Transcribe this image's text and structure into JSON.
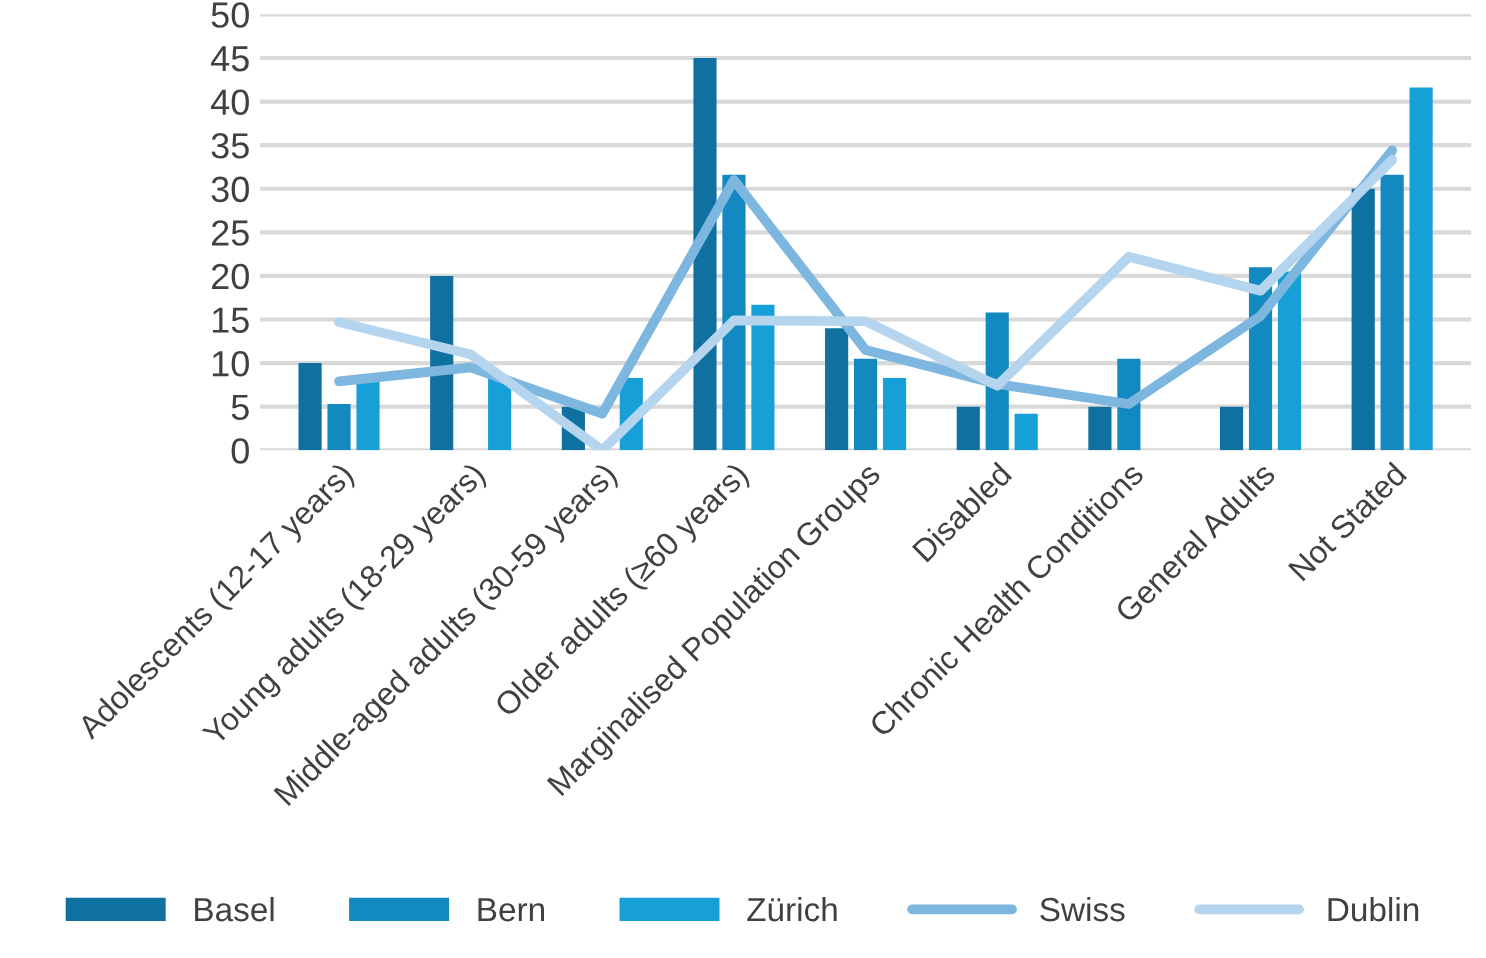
{
  "chart_data": {
    "type": "bar",
    "categories": [
      "Adolescents (12-17 years)",
      "Young adults (18-29 years)",
      "Middle-aged adults (30-59 years)",
      "Older adults (≥60 years)",
      "Marginalised Population Groups",
      "Disabled",
      "Chronic Health Conditions",
      "General Adults",
      "Not Stated"
    ],
    "series": [
      {
        "name": "Basel",
        "color": "#0e71a0",
        "values": [
          10,
          20,
          5,
          45,
          14,
          5,
          5,
          5,
          30
        ]
      },
      {
        "name": "Bern",
        "color": "#1289bf",
        "values": [
          5.3,
          null,
          null,
          31.6,
          10.5,
          15.8,
          10.5,
          21,
          31.6
        ]
      },
      {
        "name": "Zürich",
        "color": "#17a0d8",
        "values": [
          7.9,
          8.3,
          8.3,
          16.7,
          8.3,
          4.2,
          null,
          20.5,
          41.6
        ]
      },
      {
        "name": "Swiss",
        "type": "line",
        "color": "#7db7e0",
        "values": [
          7.9,
          9.5,
          4.2,
          31,
          11.5,
          7.6,
          5.3,
          15.4,
          34.4
        ]
      },
      {
        "name": "Dublin",
        "type": "line",
        "color": "#b5d4ee",
        "values": [
          14.7,
          11,
          0,
          14.9,
          14.8,
          7.4,
          22.2,
          18.3,
          33.3
        ]
      }
    ],
    "ylim": [
      0,
      50
    ],
    "yticks": [
      0,
      5,
      10,
      15,
      20,
      25,
      30,
      35,
      40,
      45,
      50
    ],
    "grid": "y",
    "legend": "bottom"
  }
}
